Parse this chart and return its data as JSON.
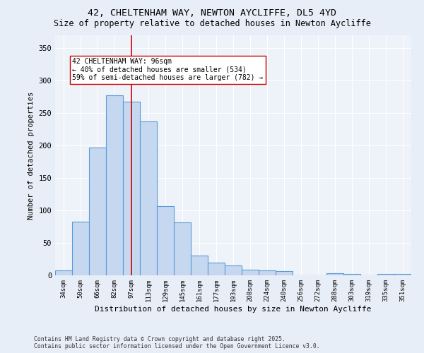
{
  "title_line1": "42, CHELTENHAM WAY, NEWTON AYCLIFFE, DL5 4YD",
  "title_line2": "Size of property relative to detached houses in Newton Aycliffe",
  "xlabel": "Distribution of detached houses by size in Newton Aycliffe",
  "ylabel": "Number of detached properties",
  "categories": [
    "34sqm",
    "50sqm",
    "66sqm",
    "82sqm",
    "97sqm",
    "113sqm",
    "129sqm",
    "145sqm",
    "161sqm",
    "177sqm",
    "193sqm",
    "208sqm",
    "224sqm",
    "240sqm",
    "256sqm",
    "272sqm",
    "288sqm",
    "303sqm",
    "319sqm",
    "335sqm",
    "351sqm"
  ],
  "values": [
    8,
    83,
    197,
    278,
    268,
    237,
    107,
    82,
    30,
    20,
    15,
    9,
    8,
    7,
    0,
    0,
    3,
    2,
    0,
    2,
    2
  ],
  "bar_color": "#c5d8f0",
  "bar_edge_color": "#5b9bd5",
  "vline_x": 4,
  "vline_color": "#cc0000",
  "annotation_line1": "42 CHELTENHAM WAY: 96sqm",
  "annotation_line2": "← 40% of detached houses are smaller (534)",
  "annotation_line3": "59% of semi-detached houses are larger (782) →",
  "annotation_box_color": "#ffffff",
  "annotation_box_edge": "#cc0000",
  "ylim": [
    0,
    370
  ],
  "yticks": [
    0,
    50,
    100,
    150,
    200,
    250,
    300,
    350
  ],
  "background_color": "#e8eef7",
  "plot_bg_color": "#eef2f9",
  "footer_line1": "Contains HM Land Registry data © Crown copyright and database right 2025.",
  "footer_line2": "Contains public sector information licensed under the Open Government Licence v3.0."
}
